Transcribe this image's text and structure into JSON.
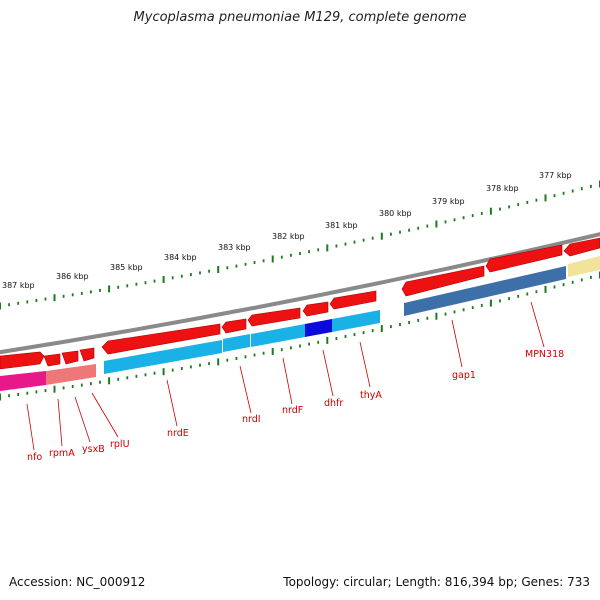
{
  "title": "Mycoplasma pneumoniae M129, complete genome",
  "footer": {
    "accession": "Accession: NC_000912",
    "summary": "Topology: circular; Length: 816,394 bp; Genes: 733"
  },
  "colors": {
    "backbone": "#8a8a8a",
    "cds_forward": "#ee1111",
    "tick": "#1e7a1e",
    "label": "#cc0000"
  },
  "kbp_labels": [
    "387 kbp",
    "386 kbp",
    "385 kbp",
    "384 kbp",
    "383 kbp",
    "382 kbp",
    "381 kbp",
    "380 kbp",
    "379 kbp",
    "378 kbp",
    "377 kbp"
  ],
  "gene_labels": [
    "nfo",
    "rpmA",
    "ysxB",
    "rplU",
    "nrdE",
    "nrdI",
    "nrdF",
    "dhfr",
    "thyA",
    "gap1",
    "MPN318"
  ]
}
